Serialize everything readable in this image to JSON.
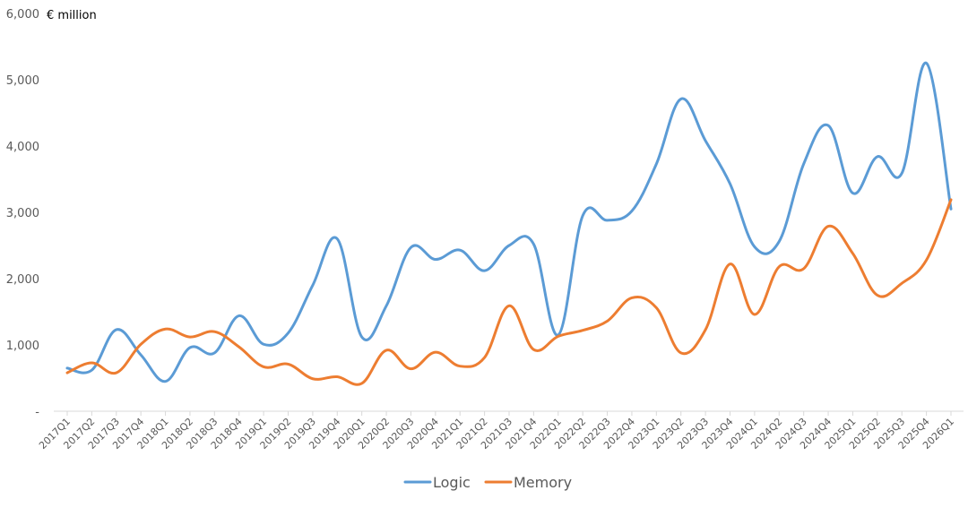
{
  "chart_data": {
    "type": "line",
    "title": "",
    "unit_label": "€ million",
    "xlabel": "",
    "ylabel": "",
    "ylim": [
      0,
      6000
    ],
    "y_ticks": [
      0,
      1000,
      2000,
      3000,
      4000,
      5000,
      6000
    ],
    "y_tick_labels": [
      "-",
      "1,000",
      "2,000",
      "3,000",
      "4,000",
      "5,000",
      "6,000"
    ],
    "grid": false,
    "legend_position": "bottom",
    "categories": [
      "2017Q1",
      "2017Q2",
      "2017Q3",
      "2017Q4",
      "2018Q1",
      "2018Q2",
      "2018Q3",
      "2018Q4",
      "2019Q1",
      "2019Q2",
      "2019Q3",
      "2019Q4",
      "2020Q1",
      "2020Q2",
      "2020Q3",
      "2020Q4",
      "2021Q1",
      "2021Q2",
      "2021Q3",
      "2021Q4",
      "2022Q1",
      "2022Q2",
      "2022Q3",
      "2022Q4",
      "2023Q1",
      "2023Q2",
      "2023Q3",
      "2023Q4",
      "2024Q1",
      "2024Q2",
      "2024Q3",
      "2024Q4",
      "2025Q1",
      "2025Q2",
      "2025Q3",
      "2025Q4",
      "2026Q1"
    ],
    "series": [
      {
        "name": "Logic",
        "color": "#5b9bd5",
        "values": [
          650,
          620,
          1230,
          850,
          450,
          960,
          880,
          1440,
          1010,
          1180,
          1900,
          2600,
          1120,
          1590,
          2470,
          2290,
          2430,
          2120,
          2500,
          2520,
          1150,
          2950,
          2880,
          3020,
          3730,
          4710,
          4080,
          3430,
          2480,
          2560,
          3730,
          4310,
          3290,
          3840,
          3590,
          5250,
          3050
        ]
      },
      {
        "name": "Memory",
        "color": "#ed7d31",
        "values": [
          580,
          730,
          580,
          1010,
          1240,
          1120,
          1200,
          970,
          670,
          710,
          490,
          520,
          420,
          920,
          640,
          890,
          680,
          810,
          1590,
          930,
          1130,
          1220,
          1360,
          1710,
          1560,
          880,
          1230,
          2220,
          1460,
          2180,
          2150,
          2790,
          2380,
          1750,
          1930,
          2280,
          3190
        ]
      }
    ]
  }
}
